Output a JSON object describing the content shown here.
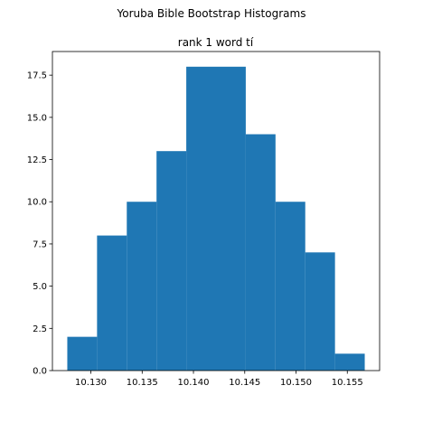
{
  "figure": {
    "suptitle": "Yoruba Bible Bootstrap Histograms"
  },
  "chart_data": {
    "type": "bar",
    "title": "rank 1 word tí",
    "xlabel": "",
    "ylabel": "",
    "bins": [
      {
        "x0": 10.1277,
        "x1": 10.1306,
        "count": 2
      },
      {
        "x0": 10.1306,
        "x1": 10.1335,
        "count": 8
      },
      {
        "x0": 10.1335,
        "x1": 10.1364,
        "count": 10
      },
      {
        "x0": 10.1364,
        "x1": 10.1393,
        "count": 13
      },
      {
        "x0": 10.1393,
        "x1": 10.1422,
        "count": 18
      },
      {
        "x0": 10.1422,
        "x1": 10.1451,
        "count": 18
      },
      {
        "x0": 10.1451,
        "x1": 10.148,
        "count": 14
      },
      {
        "x0": 10.148,
        "x1": 10.1509,
        "count": 10
      },
      {
        "x0": 10.1509,
        "x1": 10.1538,
        "count": 7
      },
      {
        "x0": 10.1538,
        "x1": 10.1567,
        "count": 1
      }
    ],
    "xlim": [
      10.12625,
      10.15815
    ],
    "ylim": [
      0,
      18.9
    ],
    "xticks": [
      {
        "value": 10.13,
        "label": "10.130"
      },
      {
        "value": 10.135,
        "label": "10.135"
      },
      {
        "value": 10.14,
        "label": "10.140"
      },
      {
        "value": 10.145,
        "label": "10.145"
      },
      {
        "value": 10.15,
        "label": "10.150"
      },
      {
        "value": 10.155,
        "label": "10.155"
      }
    ],
    "yticks": [
      {
        "value": 0.0,
        "label": "0.0"
      },
      {
        "value": 2.5,
        "label": "2.5"
      },
      {
        "value": 5.0,
        "label": "5.0"
      },
      {
        "value": 7.5,
        "label": "7.5"
      },
      {
        "value": 10.0,
        "label": "10.0"
      },
      {
        "value": 12.5,
        "label": "12.5"
      },
      {
        "value": 15.0,
        "label": "15.0"
      },
      {
        "value": 17.5,
        "label": "17.5"
      }
    ],
    "grid": false,
    "bar_color": "#1f77b4"
  }
}
